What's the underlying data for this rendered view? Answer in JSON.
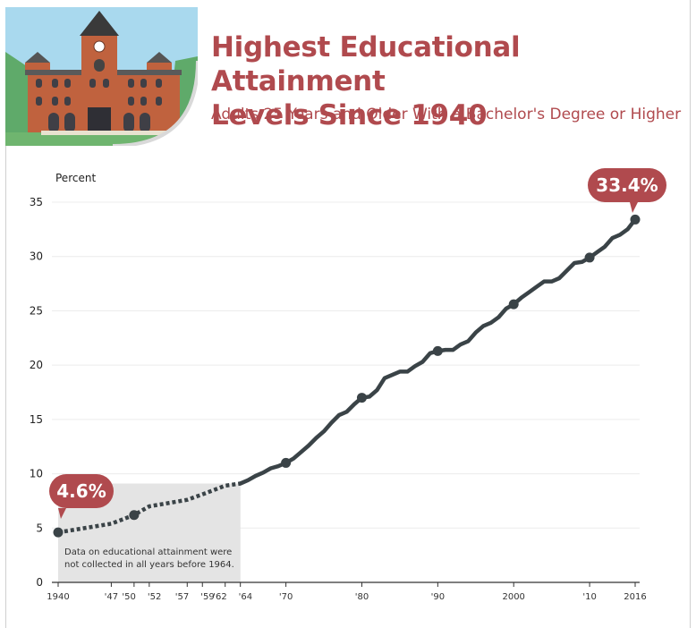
{
  "header": {
    "title": "Highest Educational Attainment\nLevels Since 1940",
    "subtitle": "Adults 25 Years and Older With a Bachelor's Degree or Higher"
  },
  "colors": {
    "accent": "#b04a4e",
    "line": "#3a4347",
    "shade": "#e4e4e4",
    "grid": "#ececec"
  },
  "icons": [
    "courthouse-illustration"
  ],
  "chart_data": {
    "type": "line",
    "title": "Highest Educational Attainment Levels Since 1940",
    "subtitle": "Adults 25 Years and Older With a Bachelor's Degree or Higher",
    "ylabel": "Percent",
    "xlabel": "",
    "ylim": [
      0,
      35
    ],
    "xlim": [
      1940,
      2016
    ],
    "yticks": [
      0,
      5,
      10,
      15,
      20,
      25,
      30,
      35
    ],
    "xticks": [
      {
        "value": 1940,
        "label": "1940"
      },
      {
        "value": 1947,
        "label": "'47"
      },
      {
        "value": 1950,
        "label": "'50"
      },
      {
        "value": 1952,
        "label": "'52"
      },
      {
        "value": 1957,
        "label": "'57"
      },
      {
        "value": 1959,
        "label": "'59"
      },
      {
        "value": 1962,
        "label": "'62"
      },
      {
        "value": 1964,
        "label": "'64"
      },
      {
        "value": 1970,
        "label": "'70"
      },
      {
        "value": 1980,
        "label": "'80"
      },
      {
        "value": 1990,
        "label": "'90"
      },
      {
        "value": 2000,
        "label": "2000"
      },
      {
        "value": 2010,
        "label": "'10"
      },
      {
        "value": 2016,
        "label": "2016"
      }
    ],
    "grid": true,
    "series_before_1964": {
      "style": "dashed",
      "points": [
        [
          1940,
          4.6
        ],
        [
          1947,
          5.4
        ],
        [
          1950,
          6.2
        ],
        [
          1952,
          7.0
        ],
        [
          1957,
          7.6
        ],
        [
          1959,
          8.1
        ],
        [
          1962,
          8.9
        ],
        [
          1964,
          9.1
        ]
      ]
    },
    "series_from_1964": {
      "style": "solid",
      "points": [
        [
          1964,
          9.1
        ],
        [
          1965,
          9.4
        ],
        [
          1966,
          9.8
        ],
        [
          1967,
          10.1
        ],
        [
          1968,
          10.5
        ],
        [
          1969,
          10.7
        ],
        [
          1970,
          11.0
        ],
        [
          1971,
          11.4
        ],
        [
          1972,
          12.0
        ],
        [
          1973,
          12.6
        ],
        [
          1974,
          13.3
        ],
        [
          1975,
          13.9
        ],
        [
          1976,
          14.7
        ],
        [
          1977,
          15.4
        ],
        [
          1978,
          15.7
        ],
        [
          1979,
          16.4
        ],
        [
          1980,
          17.0
        ],
        [
          1981,
          17.1
        ],
        [
          1982,
          17.7
        ],
        [
          1983,
          18.8
        ],
        [
          1984,
          19.1
        ],
        [
          1985,
          19.4
        ],
        [
          1986,
          19.4
        ],
        [
          1987,
          19.9
        ],
        [
          1988,
          20.3
        ],
        [
          1989,
          21.1
        ],
        [
          1990,
          21.3
        ],
        [
          1991,
          21.4
        ],
        [
          1992,
          21.4
        ],
        [
          1993,
          21.9
        ],
        [
          1994,
          22.2
        ],
        [
          1995,
          23.0
        ],
        [
          1996,
          23.6
        ],
        [
          1997,
          23.9
        ],
        [
          1998,
          24.4
        ],
        [
          1999,
          25.2
        ],
        [
          2000,
          25.6
        ],
        [
          2001,
          26.2
        ],
        [
          2002,
          26.7
        ],
        [
          2003,
          27.2
        ],
        [
          2004,
          27.7
        ],
        [
          2005,
          27.7
        ],
        [
          2006,
          28.0
        ],
        [
          2007,
          28.7
        ],
        [
          2008,
          29.4
        ],
        [
          2009,
          29.5
        ],
        [
          2010,
          29.9
        ],
        [
          2011,
          30.4
        ],
        [
          2012,
          30.9
        ],
        [
          2013,
          31.7
        ],
        [
          2014,
          32.0
        ],
        [
          2015,
          32.5
        ],
        [
          2016,
          33.4
        ]
      ]
    },
    "markers": [
      [
        1940,
        4.6
      ],
      [
        1950,
        6.2
      ],
      [
        1970,
        11.0
      ],
      [
        1980,
        17.0
      ],
      [
        1990,
        21.3
      ],
      [
        2000,
        25.6
      ],
      [
        2010,
        29.9
      ],
      [
        2016,
        33.4
      ]
    ],
    "shaded_region": {
      "x": [
        1940,
        1964
      ]
    },
    "annotations": {
      "start_label": "4.6%",
      "end_label": "33.4%",
      "note_line1": "Data on educational attainment were",
      "note_line2": "not collected in all years before 1964."
    }
  }
}
